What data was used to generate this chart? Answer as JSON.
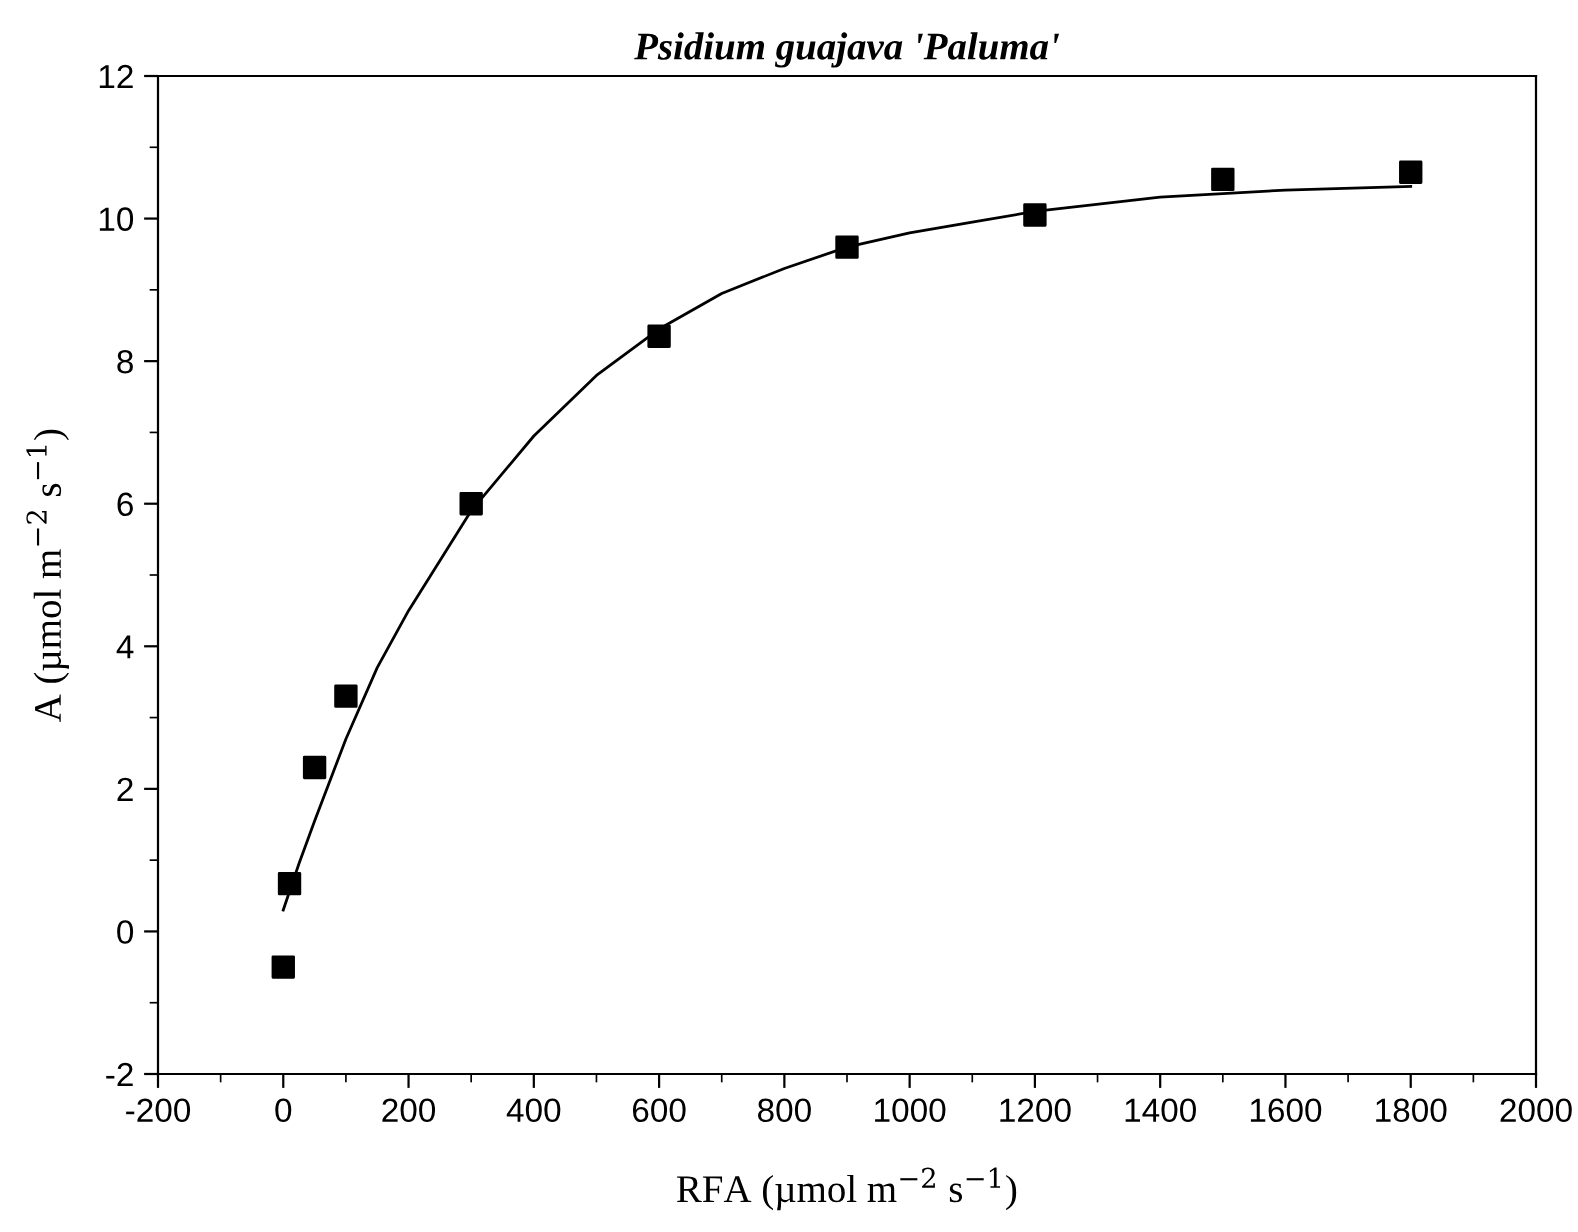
{
  "chart_data": {
    "type": "scatter",
    "title": "Psidium guajava 'Paluma'",
    "xlabel": "RFA (µmol m$^{−2}$ s$^{−1}$)",
    "ylabel": "A (µmol m$^{−2}$ s$^{−1}$)",
    "xlim": [
      -200,
      2000
    ],
    "xticks": [
      -200,
      0,
      200,
      400,
      600,
      800,
      1000,
      1200,
      1400,
      1600,
      1800,
      2000
    ],
    "ylim": [
      -2,
      12
    ],
    "yticks": [
      -2,
      0,
      2,
      4,
      6,
      8,
      10,
      12
    ],
    "grid": false,
    "legend": false,
    "series": [
      {
        "marker": "square",
        "color": "#000000",
        "x": [
          0,
          10,
          50,
          100,
          300,
          600,
          900,
          1200,
          1500,
          1800
        ],
        "values": [
          -0.5,
          0.67,
          2.3,
          3.3,
          6.0,
          8.35,
          9.6,
          10.05,
          10.55,
          10.65
        ]
      },
      {
        "type": "line",
        "marker": "none",
        "line_style": "solid",
        "color": "#000000",
        "x": [
          0,
          25,
          50,
          100,
          150,
          200,
          300,
          400,
          500,
          600,
          700,
          800,
          900,
          1000,
          1100,
          1200,
          1400,
          1600,
          1800
        ],
        "values": [
          0.3,
          0.95,
          1.55,
          2.7,
          3.7,
          4.5,
          5.9,
          6.95,
          7.8,
          8.45,
          8.95,
          9.3,
          9.6,
          9.8,
          9.95,
          10.1,
          10.3,
          10.4,
          10.45
        ]
      }
    ]
  }
}
